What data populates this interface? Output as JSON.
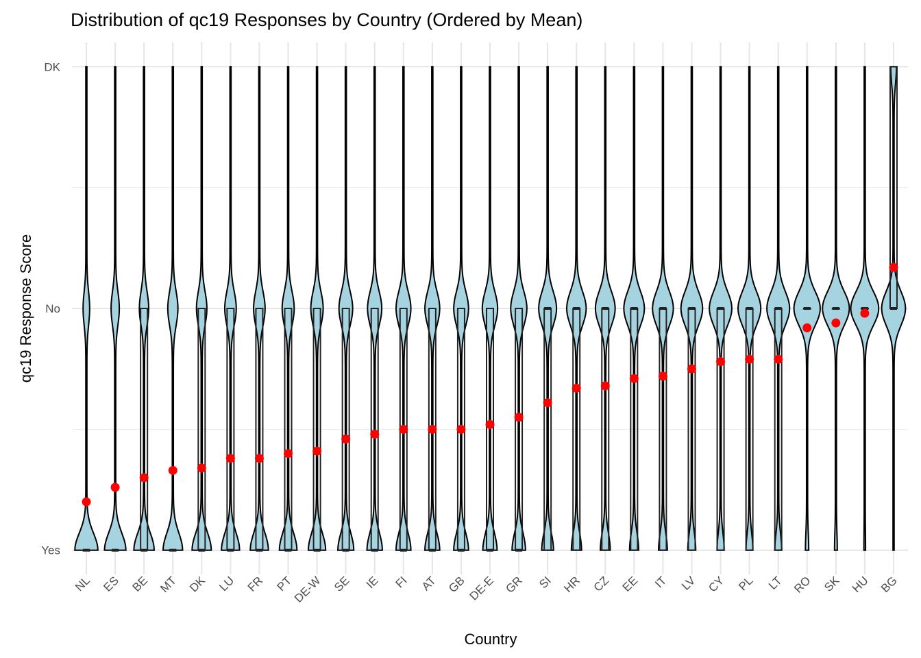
{
  "chart_data": {
    "type": "violin",
    "title": "Distribution of qc19 Responses by Country (Ordered by Mean)",
    "x_label": "Country",
    "y_label": "qc19 Response Score",
    "categories": [
      "NL",
      "ES",
      "BE",
      "MT",
      "DK",
      "LU",
      "FR",
      "PT",
      "DE-W",
      "SE",
      "IE",
      "FI",
      "AT",
      "GB",
      "DE-E",
      "GR",
      "SI",
      "HR",
      "CZ",
      "EE",
      "IT",
      "LV",
      "CY",
      "PL",
      "LT",
      "RO",
      "SK",
      "HU",
      "BG"
    ],
    "means": [
      1.2,
      1.26,
      1.3,
      1.33,
      1.34,
      1.38,
      1.38,
      1.4,
      1.41,
      1.46,
      1.48,
      1.5,
      1.5,
      1.5,
      1.52,
      1.55,
      1.61,
      1.67,
      1.68,
      1.71,
      1.72,
      1.75,
      1.78,
      1.79,
      1.79,
      1.92,
      1.94,
      1.98,
      2.17
    ],
    "q1": [
      1,
      1,
      1,
      1,
      1,
      1,
      1,
      1,
      1,
      1,
      1,
      1,
      1,
      1,
      1,
      1,
      1,
      1,
      1,
      1,
      1,
      1,
      1,
      1,
      1,
      2,
      2,
      2,
      2
    ],
    "median": [
      1,
      1,
      1,
      1,
      1,
      1,
      1,
      1,
      1,
      1,
      1,
      1,
      1,
      1,
      1,
      1,
      2,
      2,
      2,
      2,
      2,
      2,
      2,
      2,
      2,
      2,
      2,
      2,
      2
    ],
    "q3": [
      1,
      1,
      2,
      1,
      2,
      2,
      2,
      2,
      2,
      2,
      2,
      2,
      2,
      2,
      2,
      2,
      2,
      2,
      2,
      2,
      2,
      2,
      2,
      2,
      2,
      2,
      2,
      2,
      3
    ],
    "violin_color": "#a6d3e0",
    "mean_color": "#ff0000",
    "ylim": [
      0.9,
      3.1
    ],
    "yticks": [
      {
        "value": 1,
        "label": "Yes"
      },
      {
        "value": 2,
        "label": "No"
      },
      {
        "value": 3,
        "label": "DK"
      }
    ],
    "grid": true
  }
}
